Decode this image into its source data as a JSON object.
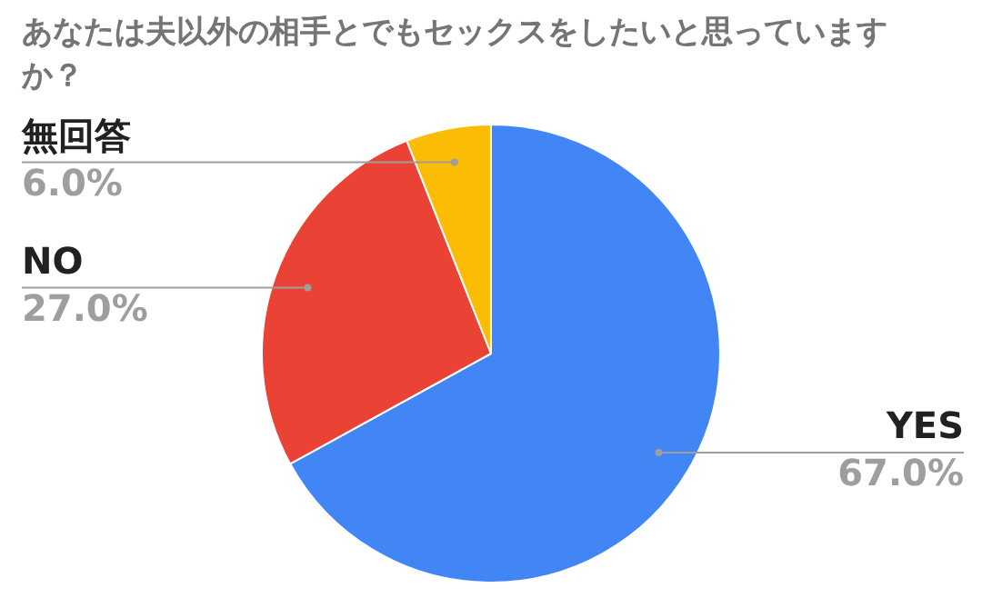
{
  "chart_data": {
    "type": "pie",
    "title": "あなたは夫以外の相手とでもセックスをしたいと思っていますか？",
    "categories": [
      "YES",
      "NO",
      "無回答"
    ],
    "values": [
      67.0,
      27.0,
      6.0
    ],
    "value_labels": [
      "67.0%",
      "27.0%",
      "6.0%"
    ],
    "colors": [
      "#4285f4",
      "#ea4335",
      "#fbbc04"
    ],
    "legend": false
  }
}
